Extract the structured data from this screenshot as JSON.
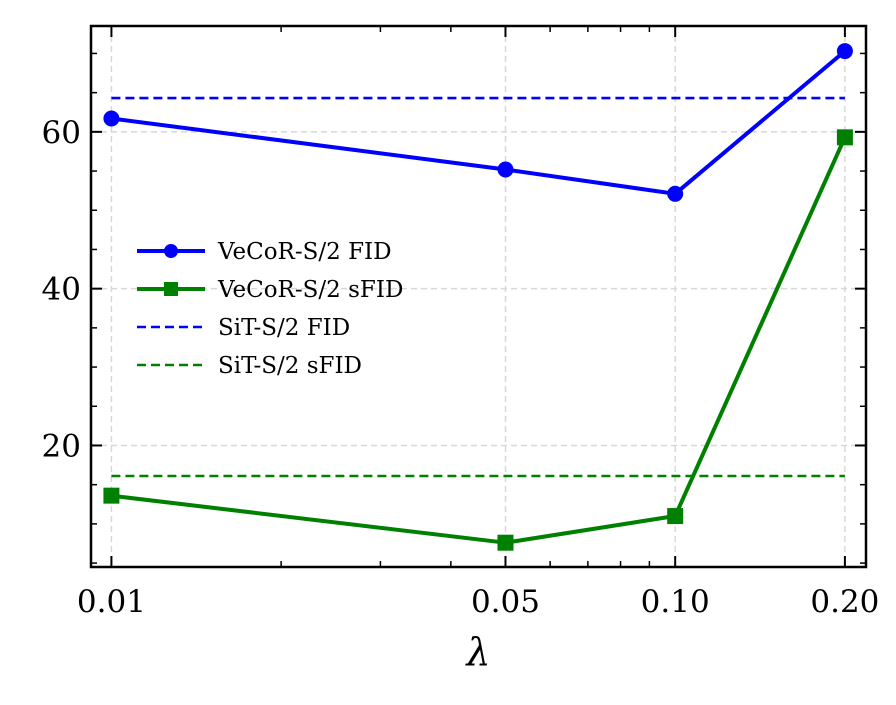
{
  "chart_data": {
    "type": "line",
    "title": "",
    "xlabel": "λ",
    "ylabel": "",
    "xscale": "log",
    "x": [
      0.01,
      0.05,
      0.1,
      0.2
    ],
    "xlim": [
      0.0092,
      0.218
    ],
    "ylim": [
      4.5,
      73.5
    ],
    "x_ticks": [
      {
        "value": 0.01,
        "label": "0.01"
      },
      {
        "value": 0.05,
        "label": "0.05"
      },
      {
        "value": 0.1,
        "label": "0.10"
      },
      {
        "value": 0.2,
        "label": "0.20"
      }
    ],
    "y_ticks": [
      {
        "value": 20,
        "label": "20"
      },
      {
        "value": 40,
        "label": "40"
      },
      {
        "value": 60,
        "label": "60"
      }
    ],
    "grid": true,
    "legend_position": "center-left",
    "series": [
      {
        "name": "VeCoR-S/2 FID",
        "values": [
          61.7,
          55.2,
          52.1,
          70.3
        ],
        "color": "#0000ff",
        "marker": "circle",
        "style": "solid"
      },
      {
        "name": "VeCoR-S/2 sFID",
        "values": [
          13.6,
          7.6,
          11.0,
          59.3
        ],
        "color": "#008000",
        "marker": "square",
        "style": "solid"
      },
      {
        "name": "SiT-S/2 FID",
        "values": [
          64.3,
          64.3,
          64.3,
          64.3
        ],
        "color": "#0000ff",
        "marker": "none",
        "style": "dashed"
      },
      {
        "name": "SiT-S/2 sFID",
        "values": [
          16.1,
          16.1,
          16.1,
          16.1
        ],
        "color": "#008000",
        "marker": "none",
        "style": "dashed"
      }
    ]
  }
}
